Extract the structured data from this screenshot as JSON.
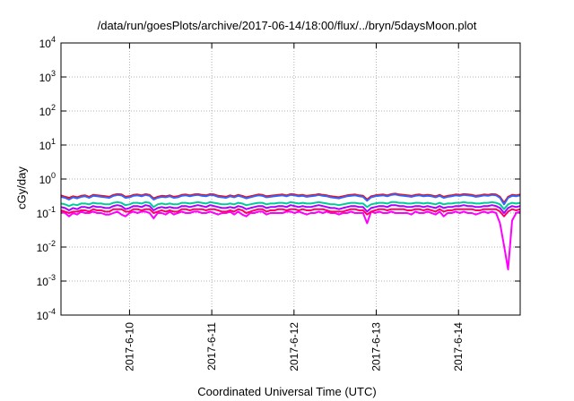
{
  "chart_data": {
    "type": "line",
    "title": "/data/run/goesPlots/archive/2017-06-14/18:00/flux/../bryn/5daysMoon.plot",
    "xlabel": "Coordinated Universal Time (UTC)",
    "ylabel": "cGy/day",
    "yscale": "log",
    "ylim": [
      0.0001,
      10000
    ],
    "xlim": [
      "2017-06-09 04:00",
      "2017-06-14 18:00"
    ],
    "x_ticks": [
      "2017-6-10",
      "2017-6-11",
      "2017-6-12",
      "2017-6-13",
      "2017-6-14"
    ],
    "y_ticks": [
      {
        "base": "10",
        "exp": "-4"
      },
      {
        "base": "10",
        "exp": "-3"
      },
      {
        "base": "10",
        "exp": "-2"
      },
      {
        "base": "10",
        "exp": "-1"
      },
      {
        "base": "10",
        "exp": "0"
      },
      {
        "base": "10",
        "exp": "1"
      },
      {
        "base": "10",
        "exp": "2"
      },
      {
        "base": "10",
        "exp": "3"
      },
      {
        "base": "10",
        "exp": "4"
      }
    ],
    "grid": true,
    "legend": "none",
    "series": [
      {
        "color": "#ff00ff",
        "values": [
          0.11,
          0.1,
          0.08,
          0.1,
          0.09,
          0.11,
          0.1,
          0.1,
          0.11,
          0.1,
          0.1,
          0.09,
          0.09,
          0.1,
          0.11,
          0.09,
          0.08,
          0.1,
          0.11,
          0.1,
          0.11,
          0.11,
          0.1,
          0.07,
          0.1,
          0.1,
          0.09,
          0.11,
          0.09,
          0.1,
          0.11,
          0.1,
          0.1,
          0.11,
          0.11,
          0.1,
          0.1,
          0.11,
          0.1,
          0.09,
          0.1,
          0.1,
          0.11,
          0.09,
          0.11,
          0.09,
          0.08,
          0.1,
          0.1,
          0.11,
          0.11,
          0.09,
          0.1,
          0.1,
          0.1,
          0.1,
          0.11,
          0.11,
          0.1,
          0.11,
          0.1,
          0.09,
          0.1,
          0.1,
          0.11,
          0.1,
          0.11,
          0.1,
          0.1,
          0.09,
          0.1,
          0.1,
          0.11,
          0.1,
          0.1,
          0.1,
          0.05,
          0.11,
          0.1,
          0.11,
          0.1,
          0.1,
          0.11,
          0.1,
          0.1,
          0.1,
          0.1,
          0.09,
          0.11,
          0.1,
          0.1,
          0.11,
          0.1,
          0.09,
          0.11,
          0.08,
          0.1,
          0.1,
          0.11,
          0.1,
          0.11,
          0.1,
          0.1,
          0.09,
          0.1,
          0.11,
          0.1,
          0.11,
          0.1,
          0.05,
          0.011,
          0.0022,
          0.06,
          0.1,
          0.11
        ]
      },
      {
        "color": "#ff0000",
        "values": [
          0.33,
          0.3,
          0.28,
          0.31,
          0.29,
          0.32,
          0.33,
          0.3,
          0.34,
          0.33,
          0.32,
          0.31,
          0.3,
          0.34,
          0.36,
          0.35,
          0.3,
          0.31,
          0.34,
          0.35,
          0.33,
          0.36,
          0.34,
          0.27,
          0.3,
          0.32,
          0.31,
          0.33,
          0.3,
          0.31,
          0.34,
          0.35,
          0.33,
          0.35,
          0.36,
          0.34,
          0.33,
          0.36,
          0.35,
          0.32,
          0.31,
          0.3,
          0.33,
          0.31,
          0.34,
          0.32,
          0.29,
          0.31,
          0.33,
          0.35,
          0.34,
          0.31,
          0.32,
          0.33,
          0.34,
          0.35,
          0.33,
          0.36,
          0.35,
          0.33,
          0.34,
          0.32,
          0.33,
          0.34,
          0.36,
          0.34,
          0.33,
          0.31,
          0.3,
          0.29,
          0.31,
          0.33,
          0.34,
          0.35,
          0.33,
          0.32,
          0.25,
          0.31,
          0.33,
          0.34,
          0.35,
          0.33,
          0.36,
          0.37,
          0.35,
          0.34,
          0.33,
          0.32,
          0.34,
          0.35,
          0.33,
          0.34,
          0.33,
          0.31,
          0.34,
          0.3,
          0.32,
          0.33,
          0.35,
          0.34,
          0.36,
          0.35,
          0.34,
          0.32,
          0.33,
          0.35,
          0.34,
          0.36,
          0.35,
          0.3,
          0.2,
          0.3,
          0.34,
          0.33,
          0.35
        ]
      },
      {
        "color": "#3366ff",
        "values": [
          0.3,
          0.28,
          0.25,
          0.29,
          0.27,
          0.3,
          0.31,
          0.28,
          0.32,
          0.31,
          0.3,
          0.29,
          0.28,
          0.32,
          0.34,
          0.33,
          0.28,
          0.29,
          0.32,
          0.33,
          0.31,
          0.34,
          0.32,
          0.25,
          0.28,
          0.3,
          0.29,
          0.31,
          0.28,
          0.29,
          0.32,
          0.33,
          0.31,
          0.33,
          0.34,
          0.32,
          0.31,
          0.34,
          0.33,
          0.3,
          0.29,
          0.28,
          0.31,
          0.29,
          0.32,
          0.3,
          0.27,
          0.29,
          0.31,
          0.33,
          0.32,
          0.29,
          0.3,
          0.31,
          0.32,
          0.33,
          0.31,
          0.34,
          0.33,
          0.31,
          0.32,
          0.3,
          0.31,
          0.32,
          0.34,
          0.32,
          0.31,
          0.29,
          0.28,
          0.27,
          0.29,
          0.31,
          0.32,
          0.33,
          0.31,
          0.3,
          0.23,
          0.29,
          0.31,
          0.32,
          0.33,
          0.31,
          0.34,
          0.35,
          0.33,
          0.32,
          0.31,
          0.3,
          0.32,
          0.33,
          0.31,
          0.32,
          0.31,
          0.29,
          0.32,
          0.28,
          0.3,
          0.31,
          0.33,
          0.32,
          0.34,
          0.33,
          0.32,
          0.3,
          0.31,
          0.33,
          0.32,
          0.34,
          0.33,
          0.28,
          0.18,
          0.28,
          0.32,
          0.31,
          0.33
        ]
      },
      {
        "color": "#00cc99",
        "values": [
          0.19,
          0.18,
          0.16,
          0.18,
          0.17,
          0.19,
          0.19,
          0.18,
          0.2,
          0.19,
          0.19,
          0.18,
          0.18,
          0.2,
          0.21,
          0.2,
          0.17,
          0.18,
          0.2,
          0.2,
          0.19,
          0.21,
          0.2,
          0.15,
          0.18,
          0.19,
          0.18,
          0.19,
          0.18,
          0.18,
          0.2,
          0.2,
          0.19,
          0.2,
          0.21,
          0.2,
          0.19,
          0.21,
          0.2,
          0.19,
          0.18,
          0.18,
          0.19,
          0.18,
          0.2,
          0.19,
          0.17,
          0.18,
          0.19,
          0.2,
          0.2,
          0.18,
          0.19,
          0.19,
          0.2,
          0.2,
          0.19,
          0.21,
          0.2,
          0.19,
          0.2,
          0.19,
          0.19,
          0.2,
          0.21,
          0.2,
          0.19,
          0.18,
          0.18,
          0.17,
          0.18,
          0.19,
          0.2,
          0.2,
          0.19,
          0.19,
          0.15,
          0.18,
          0.19,
          0.2,
          0.2,
          0.19,
          0.21,
          0.21,
          0.2,
          0.2,
          0.19,
          0.19,
          0.2,
          0.2,
          0.19,
          0.2,
          0.19,
          0.18,
          0.2,
          0.18,
          0.19,
          0.19,
          0.2,
          0.2,
          0.21,
          0.2,
          0.2,
          0.19,
          0.19,
          0.2,
          0.2,
          0.21,
          0.2,
          0.18,
          0.13,
          0.18,
          0.2,
          0.19,
          0.2
        ]
      },
      {
        "color": "#aa00ff",
        "values": [
          0.15,
          0.14,
          0.12,
          0.14,
          0.13,
          0.15,
          0.15,
          0.14,
          0.16,
          0.15,
          0.15,
          0.14,
          0.14,
          0.16,
          0.17,
          0.16,
          0.13,
          0.14,
          0.16,
          0.16,
          0.15,
          0.17,
          0.16,
          0.12,
          0.14,
          0.15,
          0.14,
          0.15,
          0.14,
          0.14,
          0.16,
          0.16,
          0.15,
          0.16,
          0.17,
          0.16,
          0.15,
          0.17,
          0.16,
          0.15,
          0.14,
          0.14,
          0.15,
          0.14,
          0.16,
          0.15,
          0.13,
          0.14,
          0.15,
          0.16,
          0.16,
          0.14,
          0.15,
          0.15,
          0.16,
          0.16,
          0.15,
          0.17,
          0.16,
          0.15,
          0.16,
          0.15,
          0.15,
          0.16,
          0.17,
          0.16,
          0.15,
          0.14,
          0.14,
          0.13,
          0.14,
          0.15,
          0.16,
          0.16,
          0.15,
          0.15,
          0.11,
          0.14,
          0.15,
          0.16,
          0.16,
          0.15,
          0.17,
          0.17,
          0.16,
          0.16,
          0.15,
          0.15,
          0.16,
          0.16,
          0.15,
          0.16,
          0.15,
          0.14,
          0.16,
          0.14,
          0.15,
          0.15,
          0.16,
          0.16,
          0.17,
          0.16,
          0.16,
          0.15,
          0.15,
          0.16,
          0.16,
          0.17,
          0.16,
          0.14,
          0.1,
          0.14,
          0.16,
          0.15,
          0.16
        ]
      },
      {
        "color": "#ff0066",
        "values": [
          0.12,
          0.11,
          0.1,
          0.11,
          0.11,
          0.12,
          0.12,
          0.11,
          0.13,
          0.12,
          0.12,
          0.11,
          0.11,
          0.13,
          0.13,
          0.13,
          0.11,
          0.11,
          0.13,
          0.13,
          0.12,
          0.13,
          0.13,
          0.1,
          0.11,
          0.12,
          0.11,
          0.12,
          0.11,
          0.11,
          0.13,
          0.13,
          0.12,
          0.13,
          0.13,
          0.13,
          0.12,
          0.13,
          0.13,
          0.12,
          0.11,
          0.11,
          0.12,
          0.11,
          0.13,
          0.12,
          0.1,
          0.11,
          0.12,
          0.13,
          0.13,
          0.11,
          0.12,
          0.12,
          0.13,
          0.13,
          0.12,
          0.13,
          0.13,
          0.12,
          0.13,
          0.12,
          0.12,
          0.13,
          0.13,
          0.13,
          0.12,
          0.11,
          0.11,
          0.11,
          0.11,
          0.12,
          0.13,
          0.13,
          0.12,
          0.12,
          0.09,
          0.11,
          0.12,
          0.13,
          0.13,
          0.12,
          0.13,
          0.13,
          0.13,
          0.13,
          0.12,
          0.12,
          0.13,
          0.13,
          0.12,
          0.13,
          0.12,
          0.11,
          0.13,
          0.11,
          0.12,
          0.12,
          0.13,
          0.13,
          0.13,
          0.13,
          0.13,
          0.12,
          0.12,
          0.13,
          0.13,
          0.13,
          0.13,
          0.11,
          0.08,
          0.11,
          0.13,
          0.12,
          0.13
        ]
      }
    ]
  }
}
